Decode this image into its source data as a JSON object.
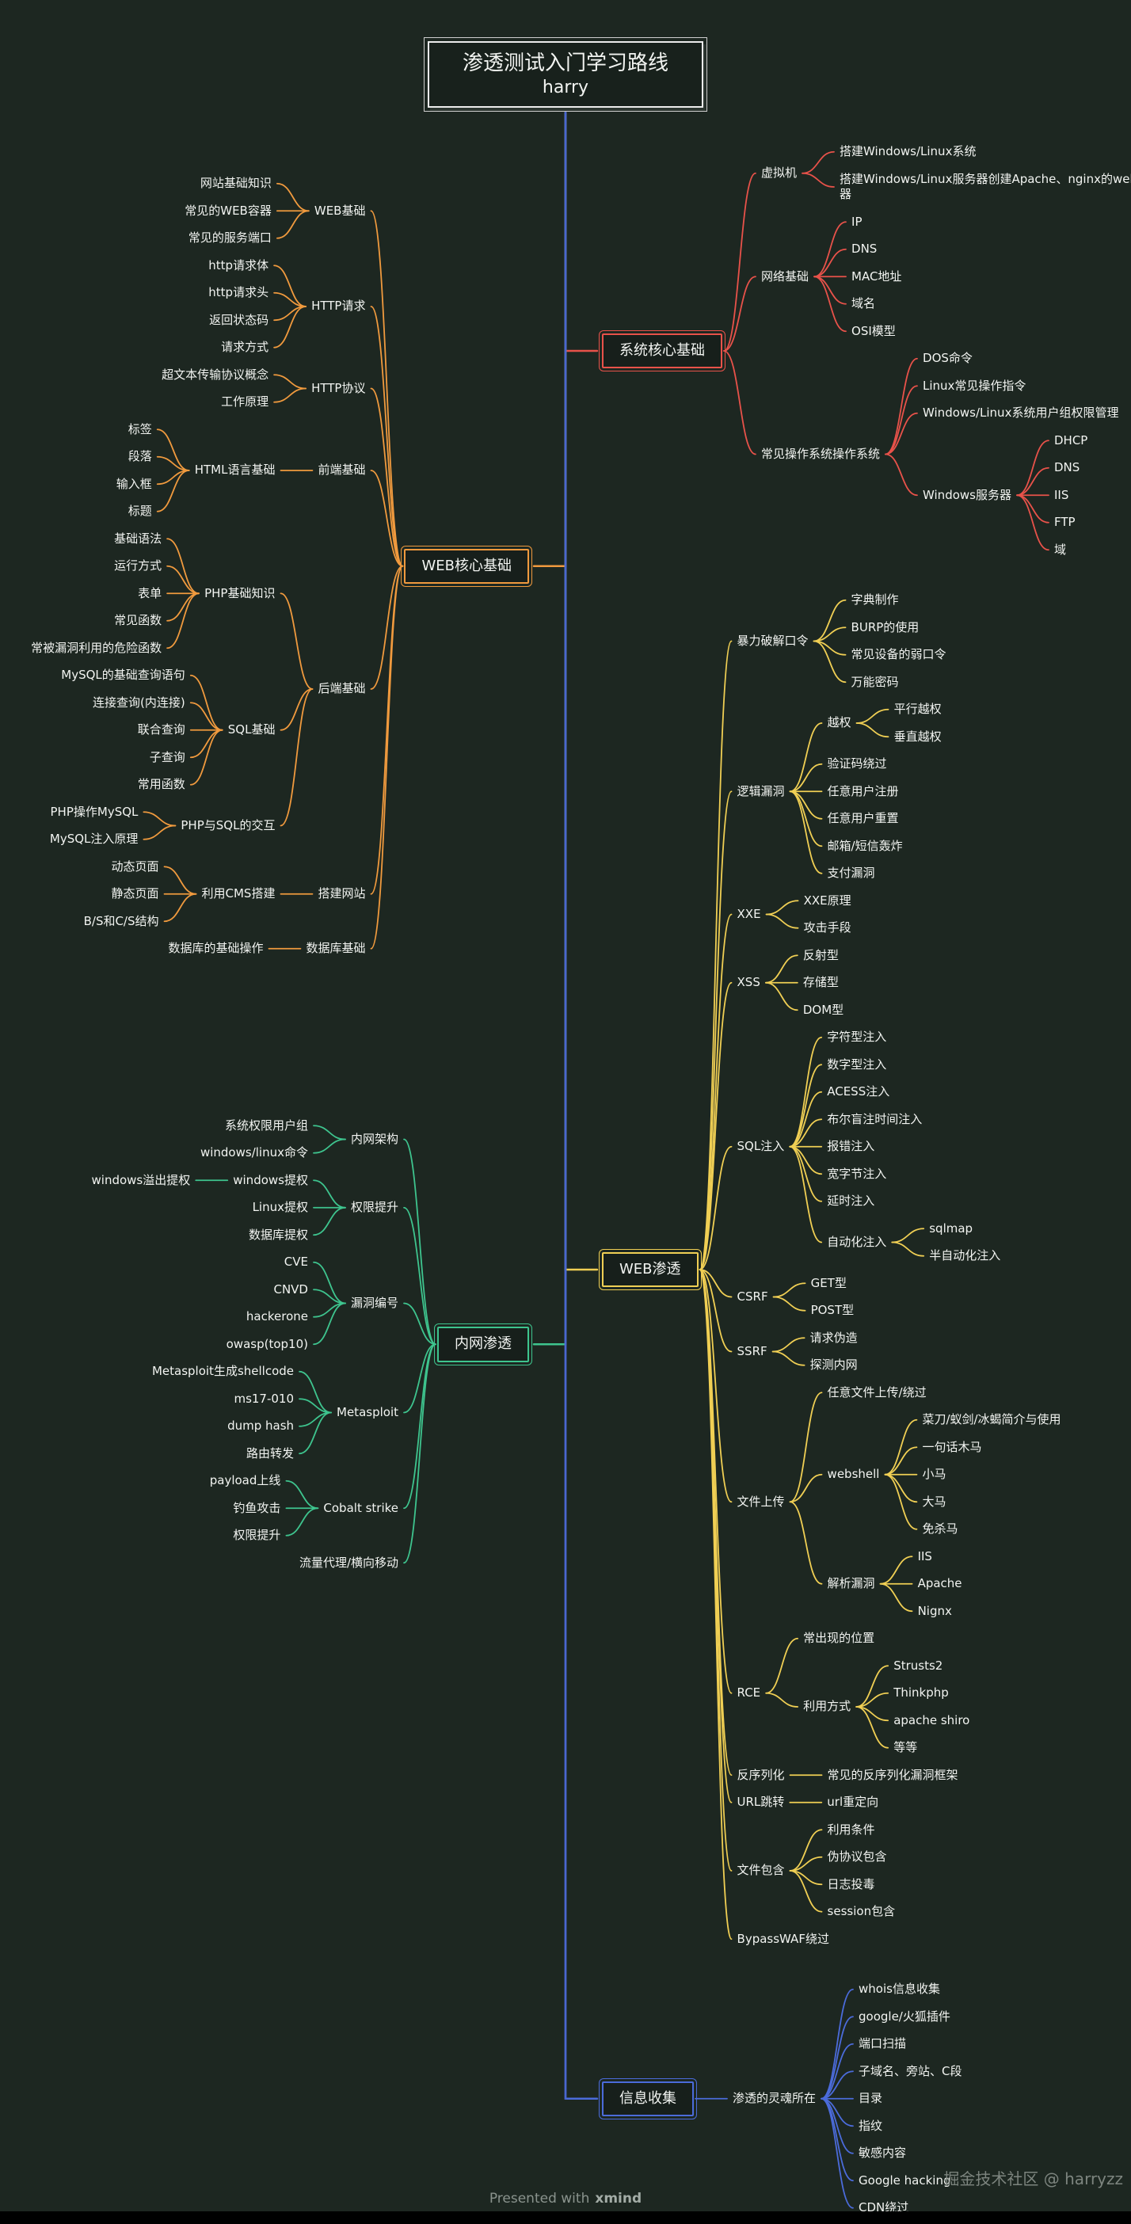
{
  "title": {
    "line1": "渗透测试入门学习路线",
    "line2": "harry"
  },
  "footer": {
    "presented_with": "Presented with",
    "brand": "xmind"
  },
  "watermark": "掘金技术社区 @ harryzz",
  "colors": {
    "background": "#1d2721",
    "text": "#f2f4f1",
    "muted": "#8a938d",
    "spine": "#4a66d0",
    "red": "#e8524a",
    "orange": "#f09a3e",
    "yellow": "#f0cf54",
    "green": "#3ec48e",
    "blue": "#4b6bda"
  },
  "branches": [
    {
      "name": "main-topic-system-core-basics",
      "label": "系统核心基础",
      "side": "right",
      "color": "#e8524a",
      "children": [
        {
          "label": "虚拟机",
          "children": [
            {
              "label": "搭建Windows/Linux系统"
            },
            {
              "label": "搭建Windows/Linux服务器创建Apache、nginx的web容器"
            }
          ]
        },
        {
          "label": "网络基础",
          "children": [
            {
              "label": "IP"
            },
            {
              "label": "DNS"
            },
            {
              "label": "MAC地址"
            },
            {
              "label": "域名"
            },
            {
              "label": "OSI模型"
            }
          ]
        },
        {
          "label": "常见操作系统操作系统",
          "children": [
            {
              "label": "DOS命令"
            },
            {
              "label": "Linux常见操作指令"
            },
            {
              "label": "Windows/Linux系统用户组权限管理"
            },
            {
              "label": "Windows服务器",
              "children": [
                {
                  "label": "DHCP"
                },
                {
                  "label": "DNS"
                },
                {
                  "label": "IIS"
                },
                {
                  "label": "FTP"
                },
                {
                  "label": "域"
                }
              ]
            }
          ]
        }
      ]
    },
    {
      "name": "main-topic-web-core-basics",
      "label": "WEB核心基础",
      "side": "left",
      "color": "#f09a3e",
      "children": [
        {
          "label": "WEB基础",
          "children": [
            {
              "label": "网站基础知识"
            },
            {
              "label": "常见的WEB容器"
            },
            {
              "label": "常见的服务端口"
            }
          ]
        },
        {
          "label": "HTTP请求",
          "children": [
            {
              "label": "http请求体"
            },
            {
              "label": "http请求头"
            },
            {
              "label": "返回状态码"
            },
            {
              "label": "请求方式"
            }
          ]
        },
        {
          "label": "HTTP协议",
          "children": [
            {
              "label": "超文本传输协议概念"
            },
            {
              "label": "工作原理"
            }
          ]
        },
        {
          "label": "前端基础",
          "children": [
            {
              "label": "HTML语言基础",
              "children": [
                {
                  "label": "标签"
                },
                {
                  "label": "段落"
                },
                {
                  "label": "输入框"
                },
                {
                  "label": "标题"
                }
              ]
            }
          ]
        },
        {
          "label": "后端基础",
          "children": [
            {
              "label": "PHP基础知识",
              "children": [
                {
                  "label": "基础语法"
                },
                {
                  "label": "运行方式"
                },
                {
                  "label": "表单"
                },
                {
                  "label": "常见函数"
                },
                {
                  "label": "常被漏洞利用的危险函数"
                }
              ]
            },
            {
              "label": "SQL基础",
              "children": [
                {
                  "label": "MySQL的基础查询语句"
                },
                {
                  "label": "连接查询(内连接)"
                },
                {
                  "label": "联合查询"
                },
                {
                  "label": "子查询"
                },
                {
                  "label": "常用函数"
                }
              ]
            },
            {
              "label": "PHP与SQL的交互",
              "children": [
                {
                  "label": "PHP操作MySQL"
                },
                {
                  "label": "MySQL注入原理"
                }
              ]
            }
          ]
        },
        {
          "label": "搭建网站",
          "children": [
            {
              "label": "利用CMS搭建",
              "children": [
                {
                  "label": "动态页面"
                },
                {
                  "label": "静态页面"
                },
                {
                  "label": "B/S和C/S结构"
                }
              ]
            }
          ]
        },
        {
          "label": "数据库基础",
          "children": [
            {
              "label": "数据库的基础操作"
            }
          ]
        }
      ]
    },
    {
      "name": "main-topic-web-pentest",
      "label": "WEB渗透",
      "side": "right",
      "color": "#f0cf54",
      "children": [
        {
          "label": "暴力破解口令",
          "children": [
            {
              "label": "字典制作"
            },
            {
              "label": "BURP的使用"
            },
            {
              "label": "常见设备的弱口令"
            },
            {
              "label": "万能密码"
            }
          ]
        },
        {
          "label": "逻辑漏洞",
          "children": [
            {
              "label": "越权",
              "children": [
                {
                  "label": "平行越权"
                },
                {
                  "label": "垂直越权"
                }
              ]
            },
            {
              "label": "验证码绕过"
            },
            {
              "label": "任意用户注册"
            },
            {
              "label": "任意用户重置"
            },
            {
              "label": "邮箱/短信轰炸"
            },
            {
              "label": "支付漏洞"
            }
          ]
        },
        {
          "label": "XXE",
          "children": [
            {
              "label": "XXE原理"
            },
            {
              "label": "攻击手段"
            }
          ]
        },
        {
          "label": "XSS",
          "children": [
            {
              "label": "反射型"
            },
            {
              "label": "存储型"
            },
            {
              "label": "DOM型"
            }
          ]
        },
        {
          "label": "SQL注入",
          "children": [
            {
              "label": "字符型注入"
            },
            {
              "label": "数字型注入"
            },
            {
              "label": "ACESS注入"
            },
            {
              "label": "布尔盲注时间注入"
            },
            {
              "label": "报错注入"
            },
            {
              "label": "宽字节注入"
            },
            {
              "label": "延时注入"
            },
            {
              "label": "自动化注入",
              "children": [
                {
                  "label": "sqlmap"
                },
                {
                  "label": "半自动化注入"
                }
              ]
            }
          ]
        },
        {
          "label": "CSRF",
          "children": [
            {
              "label": "GET型"
            },
            {
              "label": "POST型"
            }
          ]
        },
        {
          "label": "SSRF",
          "children": [
            {
              "label": "请求伪造"
            },
            {
              "label": "探测内网"
            }
          ]
        },
        {
          "label": "文件上传",
          "children": [
            {
              "label": "任意文件上传/绕过"
            },
            {
              "label": "webshell",
              "children": [
                {
                  "label": "菜刀/蚁剑/冰蝎简介与使用"
                },
                {
                  "label": "一句话木马"
                },
                {
                  "label": "小马"
                },
                {
                  "label": "大马"
                },
                {
                  "label": "免杀马"
                }
              ]
            },
            {
              "label": "解析漏洞",
              "children": [
                {
                  "label": "IIS"
                },
                {
                  "label": "Apache"
                },
                {
                  "label": "Nignx"
                }
              ]
            }
          ]
        },
        {
          "label": "RCE",
          "children": [
            {
              "label": "常出现的位置"
            },
            {
              "label": "利用方式",
              "children": [
                {
                  "label": "Strusts2"
                },
                {
                  "label": "Thinkphp"
                },
                {
                  "label": "apache shiro"
                },
                {
                  "label": "等等"
                }
              ]
            }
          ]
        },
        {
          "label": "反序列化",
          "children": [
            {
              "label": "常见的反序列化漏洞框架"
            }
          ]
        },
        {
          "label": "URL跳转",
          "children": [
            {
              "label": "url重定向"
            }
          ]
        },
        {
          "label": "文件包含",
          "children": [
            {
              "label": "利用条件"
            },
            {
              "label": "伪协议包含"
            },
            {
              "label": "日志投毒"
            },
            {
              "label": "session包含"
            }
          ]
        },
        {
          "label": "BypassWAF绕过"
        }
      ]
    },
    {
      "name": "main-topic-intranet-pentest",
      "label": "内网渗透",
      "side": "left",
      "color": "#3ec48e",
      "children": [
        {
          "label": "内网架构",
          "children": [
            {
              "label": "系统权限用户组"
            },
            {
              "label": "windows/linux命令"
            }
          ]
        },
        {
          "label": "权限提升",
          "children": [
            {
              "label": "windows提权",
              "children": [
                {
                  "label": "windows溢出提权"
                }
              ]
            },
            {
              "label": "Linux提权"
            },
            {
              "label": "数据库提权"
            }
          ]
        },
        {
          "label": "漏洞编号",
          "children": [
            {
              "label": "CVE"
            },
            {
              "label": "CNVD"
            },
            {
              "label": "hackerone"
            },
            {
              "label": "owasp(top10)"
            }
          ]
        },
        {
          "label": "Metasploit",
          "children": [
            {
              "label": "Metasploit生成shellcode"
            },
            {
              "label": "ms17-010"
            },
            {
              "label": "dump hash"
            },
            {
              "label": "路由转发"
            }
          ]
        },
        {
          "label": "Cobalt strike",
          "children": [
            {
              "label": "payload上线"
            },
            {
              "label": "钓鱼攻击"
            },
            {
              "label": "权限提升"
            }
          ]
        },
        {
          "label": "流量代理/横向移动"
        }
      ]
    },
    {
      "name": "main-topic-info-gathering",
      "label": "信息收集",
      "side": "right",
      "color": "#4b6bda",
      "children": [
        {
          "label": "渗透的灵魂所在",
          "children": [
            {
              "label": "whois信息收集"
            },
            {
              "label": "google/火狐插件"
            },
            {
              "label": "端口扫描"
            },
            {
              "label": "子域名、旁站、C段"
            },
            {
              "label": "目录"
            },
            {
              "label": "指纹"
            },
            {
              "label": "敏感内容"
            },
            {
              "label": "Google hacking"
            },
            {
              "label": "CDN绕过"
            }
          ]
        }
      ]
    }
  ]
}
